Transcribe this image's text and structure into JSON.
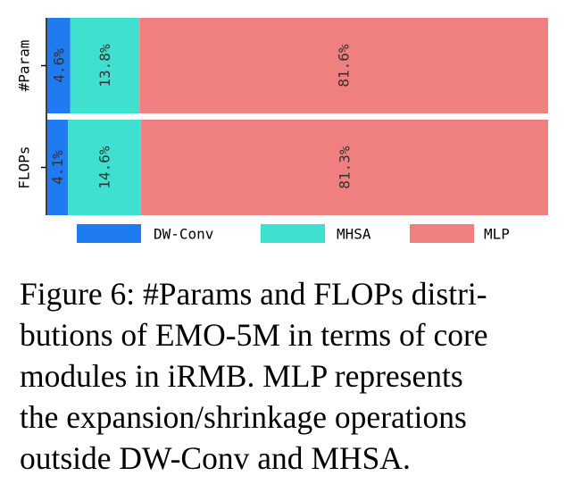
{
  "chart_data": {
    "type": "bar",
    "orientation": "horizontal",
    "stacked": true,
    "categories": [
      "#Param",
      "FLOPs"
    ],
    "series": [
      {
        "name": "DW-Conv",
        "values": [
          4.6,
          4.1
        ],
        "labels": [
          "4.6%",
          "4.1%"
        ],
        "color": "#1f7bf2"
      },
      {
        "name": "MHSA",
        "values": [
          13.8,
          14.6
        ],
        "labels": [
          "13.8%",
          "14.6%"
        ],
        "color": "#40e0d0"
      },
      {
        "name": "MLP",
        "values": [
          81.6,
          81.3
        ],
        "labels": [
          "81.6%",
          "81.3%"
        ],
        "color": "#f08080"
      }
    ],
    "xlim": [
      0,
      100
    ],
    "legend": "bottom",
    "title": "",
    "xlabel": "",
    "ylabel": ""
  },
  "caption_lines": [
    "Figure 6: #Params and FLOPs distri-",
    "butions of EMO-5M in terms of core",
    "modules in iRMB. MLP represents",
    "the expansion/shrinkage operations",
    "outside DW-Conv and MHSA."
  ]
}
